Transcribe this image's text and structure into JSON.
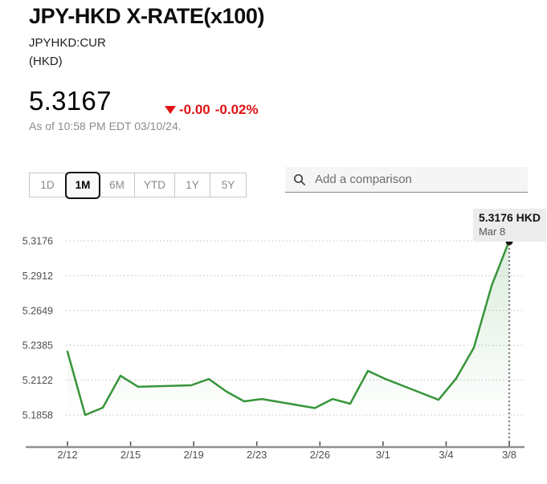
{
  "header": {
    "title": "JPY-HKD X-RATE(x100)",
    "ticker": "JPYHKD:CUR",
    "currency": "(HKD)",
    "price": "5.3167",
    "change_value": "-0.00",
    "change_percent": "-0.02%",
    "change_direction": "down",
    "as_of": "As of 10:58 PM EDT 03/10/24."
  },
  "range_selector": {
    "options": [
      {
        "label": "1D",
        "selected": false
      },
      {
        "label": "1M",
        "selected": true
      },
      {
        "label": "6M",
        "selected": false
      },
      {
        "label": "YTD",
        "selected": false
      },
      {
        "label": "1Y",
        "selected": false
      },
      {
        "label": "5Y",
        "selected": false
      }
    ]
  },
  "comparison_search": {
    "placeholder": "Add a comparison"
  },
  "marker_tooltip": {
    "price_label": "5.3176 HKD",
    "date_label": "Mar 8"
  },
  "colors": {
    "negative_red": "#e01212",
    "line_green": "#37953a",
    "grid_gray": "#cccccc",
    "axis_gray": "#8f8f8f",
    "tick_gray": "#555555",
    "label_gray": "#4f4f4f",
    "marker_black": "#141414",
    "tooltip_bg": "#ececec"
  },
  "chart_data": {
    "type": "line",
    "title": "JPY-HKD X-RATE(x100) — 1M",
    "unit": "HKD",
    "xlabel": "",
    "ylabel": "",
    "ylim": [
      5.1858,
      5.3176
    ],
    "grid": "horizontal-dotted",
    "legend": "none",
    "y_ticks": [
      "5.3176",
      "5.2912",
      "5.2649",
      "5.2385",
      "5.2122",
      "5.1858"
    ],
    "x_ticks": [
      "2/12",
      "2/15",
      "2/19",
      "2/23",
      "2/26",
      "3/1",
      "3/4",
      "3/8"
    ],
    "series": [
      {
        "name": "JPYHKD:CUR",
        "color": "#37953a",
        "points": [
          {
            "date": "2/12",
            "day": 0,
            "value": 5.2338
          },
          {
            "date": "2/13",
            "day": 1,
            "value": 5.1858
          },
          {
            "date": "2/14",
            "day": 2,
            "value": 5.1913
          },
          {
            "date": "2/15",
            "day": 3,
            "value": 5.2155
          },
          {
            "date": "2/16",
            "day": 4,
            "value": 5.2071
          },
          {
            "date": "2/19",
            "day": 7,
            "value": 5.2083
          },
          {
            "date": "2/20",
            "day": 8,
            "value": 5.213
          },
          {
            "date": "2/21",
            "day": 9,
            "value": 5.2035
          },
          {
            "date": "2/22",
            "day": 10,
            "value": 5.1961
          },
          {
            "date": "2/23",
            "day": 11,
            "value": 5.1979
          },
          {
            "date": "2/26",
            "day": 14,
            "value": 5.191
          },
          {
            "date": "2/27",
            "day": 15,
            "value": 5.1979
          },
          {
            "date": "2/28",
            "day": 16,
            "value": 5.1943
          },
          {
            "date": "2/29",
            "day": 17,
            "value": 5.2192
          },
          {
            "date": "3/1",
            "day": 18,
            "value": 5.213
          },
          {
            "date": "3/4",
            "day": 21,
            "value": 5.1973
          },
          {
            "date": "3/5",
            "day": 22,
            "value": 5.2135
          },
          {
            "date": "3/6",
            "day": 23,
            "value": 5.2368
          },
          {
            "date": "3/7",
            "day": 24,
            "value": 5.2835
          },
          {
            "date": "3/8",
            "day": 25,
            "value": 5.3176
          }
        ]
      }
    ],
    "last_point": {
      "date": "Mar 8",
      "value": 5.3176
    }
  }
}
